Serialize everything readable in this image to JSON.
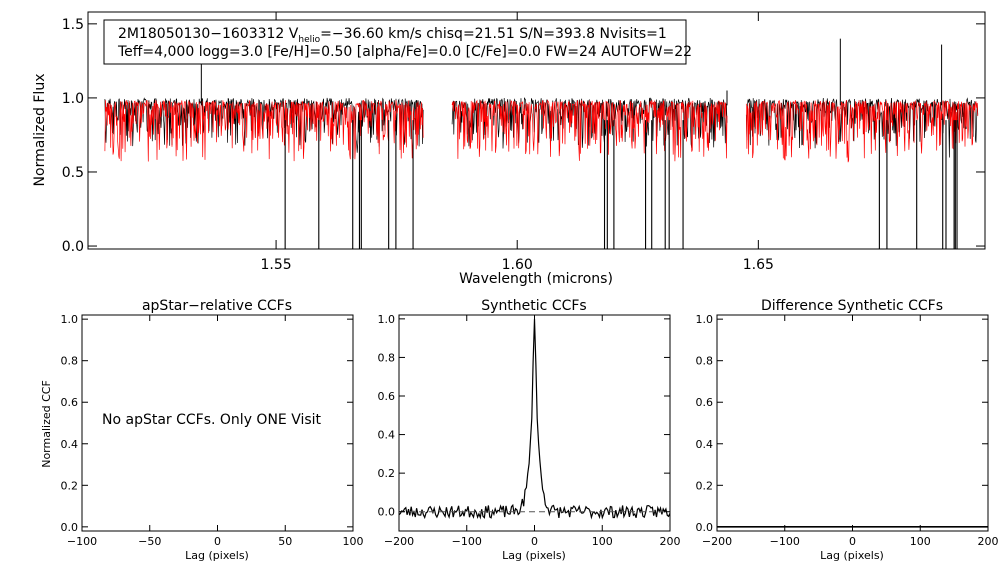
{
  "chart_data": [
    {
      "type": "line",
      "id": "spectrum",
      "title": "",
      "xlabel": "Wavelength (microns)",
      "ylabel": "Normalized Flux",
      "xlim": [
        1.511,
        1.697
      ],
      "ylim": [
        -0.02,
        1.58
      ],
      "xticks": [
        1.55,
        1.6,
        1.65
      ],
      "xtick_labels": [
        "1.55",
        "1.60",
        "1.65"
      ],
      "yticks": [
        0.0,
        0.5,
        1.0,
        1.5
      ],
      "ytick_labels": [
        "0.0",
        "0.5",
        "1.0",
        "1.5"
      ],
      "chip_ranges": [
        [
          1.5145,
          1.5805
        ],
        [
          1.5865,
          1.6435
        ],
        [
          1.6475,
          1.6955
        ]
      ],
      "series": [
        {
          "name": "observed",
          "color": "#000000",
          "continuum": 0.98,
          "line_depth": 0.14,
          "deep_line_count": 24
        },
        {
          "name": "model",
          "color": "#ff0000",
          "continuum": 0.97,
          "line_depth": 0.18
        }
      ],
      "info_box": {
        "line1": "2M18050130−1603312  V",
        "line1_sub": "helio",
        "line1_rest": "=−36.60 km/s  chisq=21.51  S/N=393.8  Nvisits=1",
        "line2": "Teff=4,000 logg=3.0 [Fe/H]=0.50 [alpha/Fe]=0.0 [C/Fe]=0.0 FW=24 AUTOFW=22"
      }
    },
    {
      "type": "line",
      "id": "apstar_ccf",
      "title": "apStar−relative CCFs",
      "xlabel": "Lag (pixels)",
      "ylabel": "Normalized CCF",
      "xlim": [
        -100,
        100
      ],
      "ylim": [
        -0.02,
        1.02
      ],
      "xticks": [
        -100,
        -50,
        0,
        50,
        100
      ],
      "xtick_labels": [
        "−100",
        "−50",
        "0",
        "50",
        "100"
      ],
      "yticks": [
        0.0,
        0.2,
        0.4,
        0.6,
        0.8,
        1.0
      ],
      "ytick_labels": [
        "0.0",
        "0.2",
        "0.4",
        "0.6",
        "0.8",
        "1.0"
      ],
      "message": "No apStar CCFs.  Only ONE Visit",
      "series": []
    },
    {
      "type": "line",
      "id": "synthetic_ccf",
      "title": "Synthetic CCFs",
      "xlabel": "Lag (pixels)",
      "ylabel": "",
      "xlim": [
        -200,
        200
      ],
      "ylim": [
        -0.1,
        1.02
      ],
      "xticks": [
        -200,
        -100,
        0,
        100,
        200
      ],
      "xtick_labels": [
        "−200",
        "−100",
        "0",
        "100",
        "200"
      ],
      "yticks": [
        0.0,
        0.2,
        0.4,
        0.6,
        0.8,
        1.0
      ],
      "ytick_labels": [
        "0.0",
        "0.2",
        "0.4",
        "0.6",
        "0.8",
        "1.0"
      ],
      "peak_lag": 0,
      "peak_value": 1.0,
      "baseline": 0.0,
      "series": [
        {
          "name": "ccf",
          "color": "#000000"
        },
        {
          "name": "zero-baseline",
          "color": "#555555",
          "style": "dashed"
        }
      ]
    },
    {
      "type": "line",
      "id": "difference_ccf",
      "title": "Difference Synthetic CCFs",
      "xlabel": "Lag (pixels)",
      "ylabel": "",
      "xlim": [
        -200,
        200
      ],
      "ylim": [
        -0.02,
        1.02
      ],
      "xticks": [
        -200,
        -100,
        0,
        100,
        200
      ],
      "xtick_labels": [
        "−200",
        "−100",
        "0",
        "100",
        "200"
      ],
      "yticks": [
        0.0,
        0.2,
        0.4,
        0.6,
        0.8,
        1.0
      ],
      "ytick_labels": [
        "0.0",
        "0.2",
        "0.4",
        "0.6",
        "0.8",
        "1.0"
      ],
      "series": [
        {
          "name": "flat",
          "color": "#000000",
          "value": 0.0
        }
      ]
    }
  ]
}
